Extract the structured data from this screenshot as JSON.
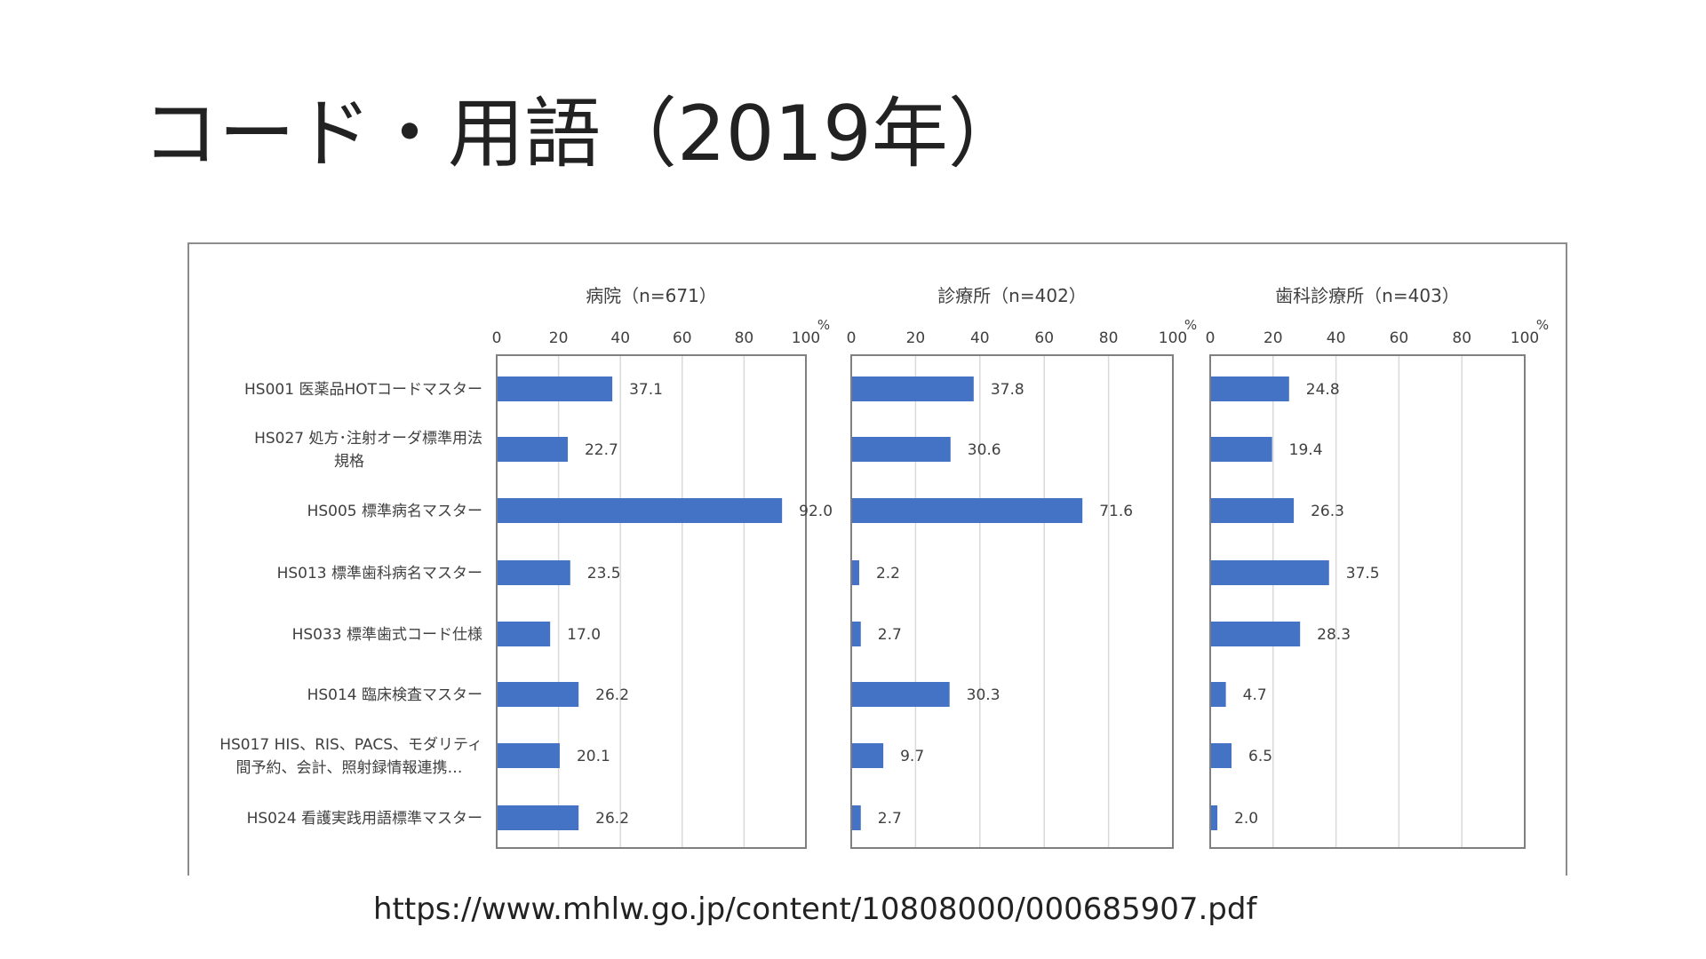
{
  "slide": {
    "title": "コード・用語（2019年）",
    "source": "https://www.mhlw.go.jp/content/10808000/000685907.pdf"
  },
  "colors": {
    "bar": "#4472C4",
    "grid": "#d9d9d9",
    "axis": "#7f7f7f",
    "text": "#404040"
  },
  "chart_data": {
    "type": "bar",
    "orientation": "horizontal",
    "categories": [
      [
        "HS001 医薬品HOTコードマスター"
      ],
      [
        "HS027 処方･注射オーダ標準用法",
        "規格"
      ],
      [
        "HS005 標準病名マスター"
      ],
      [
        "HS013 標準歯科病名マスター"
      ],
      [
        "HS033 標準歯式コード仕様"
      ],
      [
        "HS014 臨床検査マスター"
      ],
      [
        "HS017 HIS、RIS、PACS、モダリティ",
        "間予約、会計、照射録情報連携…"
      ],
      [
        "HS024 看護実践用語標準マスター"
      ]
    ],
    "xlim": [
      0,
      100
    ],
    "ticks": [
      "0",
      "20",
      "40",
      "60",
      "80",
      "100"
    ],
    "unit": "%",
    "grid": true,
    "panels": [
      {
        "title": "病院（n=671）",
        "values": [
          37.1,
          22.7,
          92.0,
          23.5,
          17.0,
          26.2,
          20.1,
          26.2
        ]
      },
      {
        "title": "診療所（n=402）",
        "values": [
          37.8,
          30.6,
          71.6,
          2.2,
          2.7,
          30.3,
          9.7,
          2.7
        ]
      },
      {
        "title": "歯科診療所（n=403）",
        "values": [
          24.8,
          19.4,
          26.3,
          37.5,
          28.3,
          4.7,
          6.5,
          2.0
        ]
      }
    ]
  }
}
